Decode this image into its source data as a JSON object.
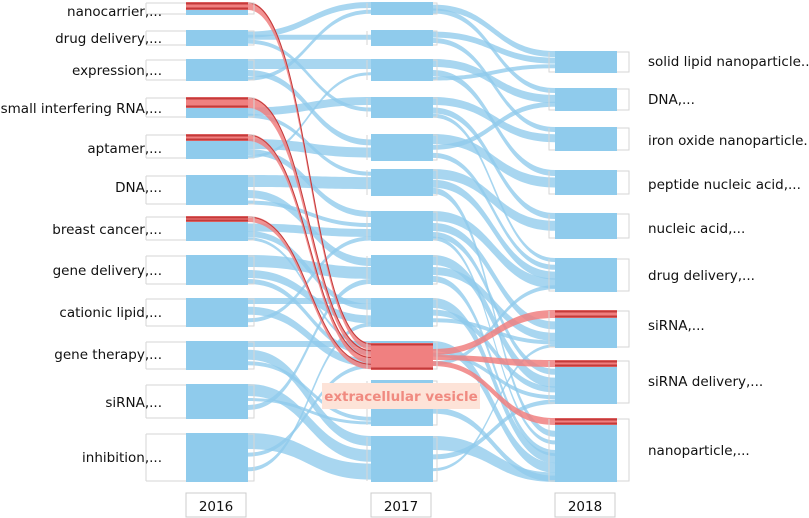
{
  "colors": {
    "node": "#8fcbec",
    "flow": "#8fcbec",
    "highlight": "#f08080",
    "highlight_dark": "#c43a3a",
    "highlight_bg": "#fde3d8"
  },
  "years": [
    "2016",
    "2017",
    "2018"
  ],
  "columns": [
    [
      "nanocarrier,...",
      "drug delivery,...",
      "expression,...",
      "small interfering RNA,...",
      "aptamer,...",
      "DNA,...",
      "breast cancer,...",
      "gene delivery,...",
      "cationic lipid,...",
      "gene therapy,...",
      "siRNA,...",
      "inhibition,..."
    ],
    [
      "",
      "",
      "",
      "",
      "",
      "",
      "",
      "",
      "",
      "",
      "extracellular vesicle",
      ""
    ],
    [
      "solid lipid nanoparticle..",
      "DNA,...",
      "iron oxide nanoparticle..",
      "peptide nucleic acid,...",
      "nucleic acid,...",
      "drug delivery,...",
      "siRNA,...",
      "siRNA delivery,...",
      "nanoparticle,..."
    ]
  ],
  "highlight_label": "extracellular vesicle",
  "highlighted_nodes": [
    "nanocarrier,...",
    "small interfering RNA,...",
    "aptamer,...",
    "breast cancer,...",
    "extracellular vesicle",
    "siRNA,...",
    "siRNA delivery,...",
    "nanoparticle,..."
  ]
}
